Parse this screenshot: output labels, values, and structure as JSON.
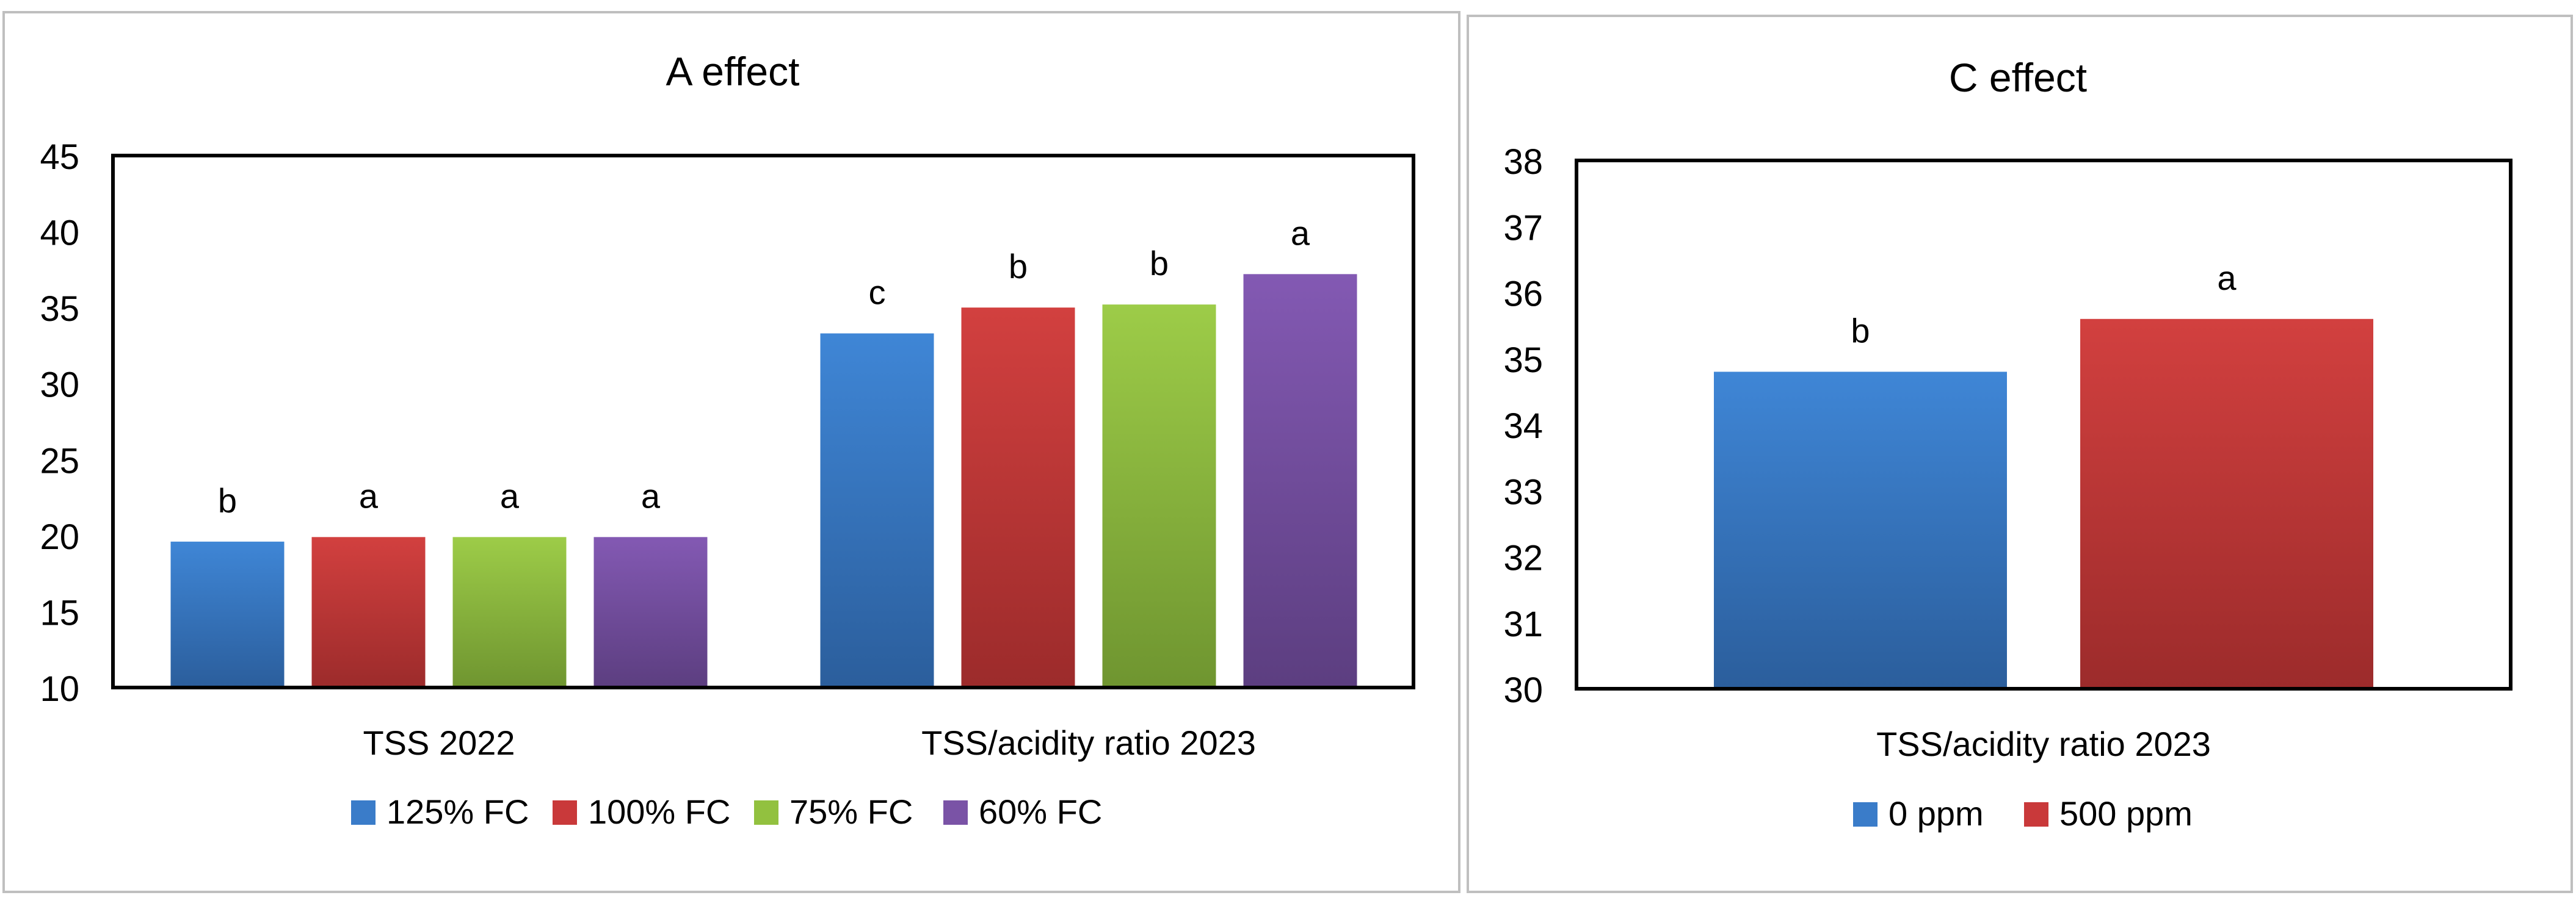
{
  "colors": {
    "blue": "#3A7CC9",
    "red": "#C9393A",
    "green": "#92C13F",
    "purple": "#7A53A6",
    "panel_border": "#BFBFBF",
    "plot_border": "#000000"
  },
  "chart_data": [
    {
      "type": "bar",
      "title": "A effect",
      "categories": [
        "TSS 2022",
        "TSS/acidity ratio 2023"
      ],
      "ylim": [
        10,
        45
      ],
      "yticks": [
        10,
        15,
        20,
        25,
        30,
        35,
        40,
        45
      ],
      "xlabel": "",
      "ylabel": "",
      "grid": false,
      "legend_position": "bottom",
      "series": [
        {
          "name": "125% FC",
          "color": "blue",
          "values": [
            19.6,
            33.3
          ],
          "labels": [
            "b",
            "c"
          ]
        },
        {
          "name": "100% FC",
          "color": "red",
          "values": [
            19.9,
            35.0
          ],
          "labels": [
            "a",
            "b"
          ]
        },
        {
          "name": "75% FC",
          "color": "green",
          "values": [
            19.9,
            35.2
          ],
          "labels": [
            "a",
            "b"
          ]
        },
        {
          "name": "60% FC",
          "color": "purple",
          "values": [
            19.9,
            37.2
          ],
          "labels": [
            "a",
            "a"
          ]
        }
      ]
    },
    {
      "type": "bar",
      "title": "C effect",
      "categories": [
        "TSS/acidity ratio 2023"
      ],
      "ylim": [
        30,
        38
      ],
      "yticks": [
        30,
        31,
        32,
        33,
        34,
        35,
        36,
        37,
        38
      ],
      "xlabel": "",
      "ylabel": "",
      "grid": false,
      "legend_position": "bottom",
      "series": [
        {
          "name": "0 ppm",
          "color": "blue",
          "values": [
            34.8
          ],
          "labels": [
            "b"
          ]
        },
        {
          "name": "500 ppm",
          "color": "red",
          "values": [
            35.6
          ],
          "labels": [
            "a"
          ]
        }
      ]
    }
  ]
}
